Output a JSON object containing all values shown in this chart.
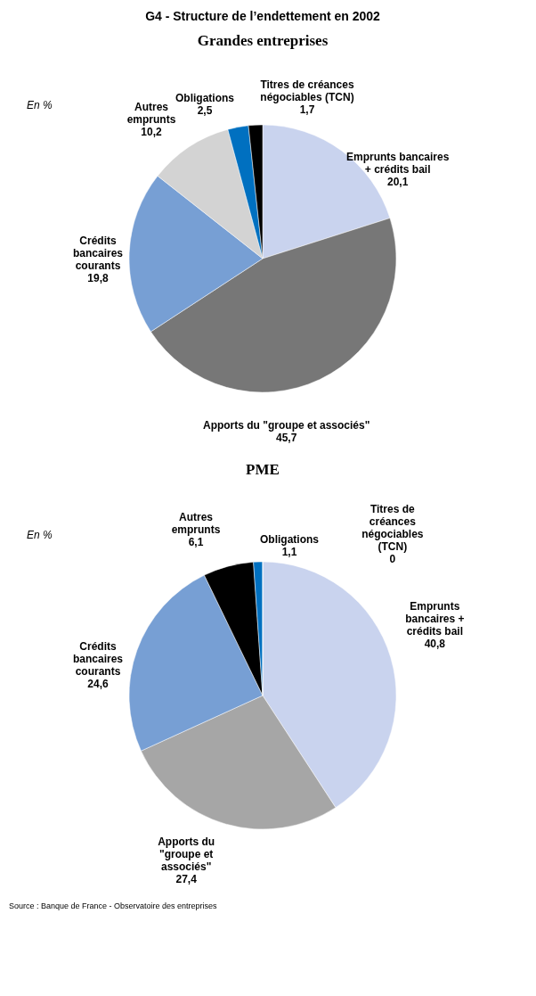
{
  "chart_data": [
    {
      "type": "pie",
      "title": "G4 - Structure de l’endettement en 2002",
      "subtitle": "Grandes entreprises",
      "annotations": [
        "En %"
      ],
      "value_labels": [
        "20,1",
        "45,7",
        "19,8",
        "10,2",
        "2,5",
        "1,7"
      ],
      "categories": [
        "Emprunts bancaires + crédits bail",
        "Apports du \"groupe et associés\"",
        "Crédits bancaires courants",
        "Autres emprunts",
        "Obligations",
        "Titres de créances négociables (TCN)"
      ],
      "values": [
        20.1,
        45.7,
        19.8,
        10.2,
        2.5,
        1.7
      ],
      "colors": [
        "#c9d3ee",
        "#777777",
        "#779fd4",
        "#d3d3d3",
        "#0070c0",
        "#000000"
      ]
    },
    {
      "type": "pie",
      "title": "PME",
      "annotations": [
        "En %",
        "Source : Banque de France - Observatoire des entreprises"
      ],
      "value_labels": [
        "40,8",
        "27,4",
        "24,6",
        "6,1",
        "1,1",
        "0"
      ],
      "categories": [
        "Emprunts bancaires + crédits bail",
        "Apports du \"groupe et associés\"",
        "Crédits bancaires courants",
        "Autres emprunts",
        "Obligations",
        "Titres de créances négociables (TCN)"
      ],
      "values": [
        40.8,
        27.4,
        24.6,
        6.1,
        1.1,
        0
      ],
      "colors": [
        "#c9d3ee",
        "#a6a6a6",
        "#779fd4",
        "#000000",
        "#0070c0",
        "#000000"
      ]
    }
  ]
}
